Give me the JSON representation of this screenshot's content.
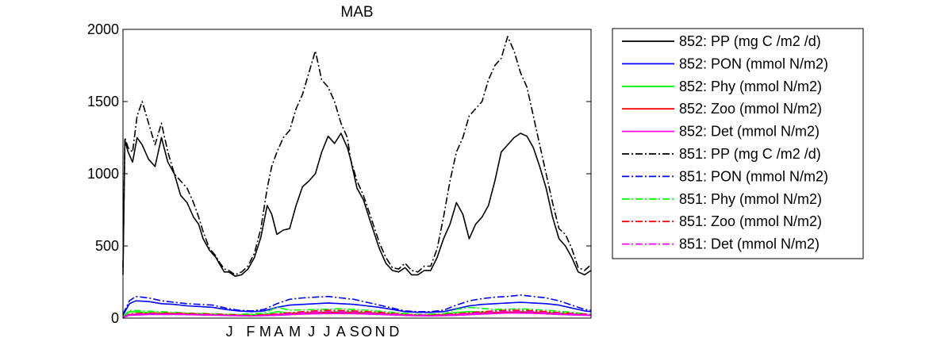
{
  "chart_data": {
    "type": "line",
    "title": "MAB",
    "xlabel": "",
    "ylabel": "",
    "ylim": [
      0,
      2000
    ],
    "xlim": [
      0,
      730
    ],
    "yticks": [
      0,
      500,
      1000,
      1500,
      2000
    ],
    "xticks": [
      {
        "label": "J",
        "day": 166
      },
      {
        "label": "F",
        "day": 199
      },
      {
        "label": "M",
        "day": 222
      },
      {
        "label": "A",
        "day": 243
      },
      {
        "label": "M",
        "day": 268
      },
      {
        "label": "J",
        "day": 294
      },
      {
        "label": "J",
        "day": 318
      },
      {
        "label": "A",
        "day": 340
      },
      {
        "label": "S",
        "day": 361
      },
      {
        "label": "O",
        "day": 380
      },
      {
        "label": "N",
        "day": 401
      },
      {
        "label": "D",
        "day": 423
      }
    ],
    "grid": false,
    "legend_position": "outside-right",
    "series": [
      {
        "name": "852: PP (mg C /m2 /d)",
        "color": "#000000",
        "style": "solid",
        "x": [
          0,
          3,
          8,
          15,
          22,
          30,
          40,
          50,
          60,
          70,
          80,
          90,
          100,
          110,
          118,
          125,
          135,
          145,
          150,
          158,
          165,
          175,
          185,
          195,
          205,
          215,
          225,
          232,
          240,
          250,
          260,
          270,
          280,
          290,
          300,
          310,
          320,
          330,
          340,
          350,
          355,
          365,
          375,
          385,
          400,
          410,
          420,
          430,
          440,
          450,
          460,
          470,
          480,
          490,
          500,
          510,
          520,
          530,
          540,
          550,
          560,
          570,
          580,
          590,
          600,
          610,
          620,
          630,
          640,
          650,
          660,
          670,
          680,
          690,
          700,
          710,
          720,
          730
        ],
        "y": [
          300,
          1230,
          1150,
          1080,
          1250,
          1200,
          1100,
          1050,
          1250,
          1080,
          1000,
          850,
          800,
          700,
          650,
          550,
          470,
          420,
          380,
          320,
          320,
          290,
          300,
          340,
          420,
          560,
          780,
          720,
          580,
          610,
          620,
          780,
          910,
          950,
          1000,
          1150,
          1260,
          1210,
          1280,
          1180,
          1100,
          900,
          820,
          680,
          480,
          380,
          330,
          320,
          350,
          300,
          300,
          330,
          330,
          420,
          550,
          650,
          800,
          720,
          550,
          650,
          700,
          780,
          950,
          1150,
          1200,
          1250,
          1280,
          1260,
          1180,
          1050,
          900,
          700,
          550,
          500,
          420,
          320,
          300,
          330
        ]
      },
      {
        "name": "852: PON (mmol N/m2)",
        "color": "#0000ff",
        "style": "solid",
        "x": [
          0,
          10,
          20,
          40,
          60,
          80,
          100,
          120,
          140,
          160,
          180,
          200,
          220,
          240,
          260,
          280,
          300,
          320,
          340,
          360,
          380,
          400,
          420,
          440,
          460,
          480,
          500,
          520,
          540,
          560,
          580,
          600,
          620,
          640,
          660,
          680,
          700,
          720,
          730
        ],
        "y": [
          20,
          100,
          120,
          115,
          100,
          95,
          85,
          80,
          75,
          60,
          50,
          45,
          50,
          75,
          90,
          95,
          100,
          105,
          100,
          95,
          85,
          75,
          60,
          45,
          40,
          40,
          45,
          65,
          85,
          95,
          100,
          105,
          110,
          105,
          100,
          90,
          70,
          50,
          45
        ]
      },
      {
        "name": "852: Phy (mmol N/m2)",
        "color": "#00ff00",
        "style": "solid",
        "x": [
          0,
          10,
          30,
          60,
          100,
          140,
          180,
          220,
          240,
          260,
          300,
          340,
          380,
          420,
          460,
          500,
          520,
          540,
          580,
          620,
          660,
          700,
          730
        ],
        "y": [
          10,
          45,
          40,
          35,
          30,
          25,
          20,
          25,
          45,
          35,
          40,
          45,
          40,
          30,
          20,
          25,
          40,
          45,
          40,
          45,
          40,
          30,
          20
        ]
      },
      {
        "name": "852: Zoo (mmol N/m2)",
        "color": "#ff0000",
        "style": "solid",
        "x": [
          0,
          10,
          40,
          80,
          120,
          160,
          200,
          240,
          280,
          320,
          360,
          400,
          440,
          480,
          520,
          560,
          600,
          640,
          680,
          730
        ],
        "y": [
          5,
          25,
          30,
          30,
          25,
          20,
          15,
          25,
          35,
          40,
          38,
          30,
          20,
          18,
          25,
          35,
          42,
          40,
          30,
          20
        ]
      },
      {
        "name": "852: Det (mmol N/m2)",
        "color": "#ff00ff",
        "style": "solid",
        "x": [
          0,
          10,
          40,
          80,
          120,
          160,
          200,
          240,
          280,
          320,
          360,
          400,
          440,
          480,
          520,
          560,
          600,
          640,
          680,
          730
        ],
        "y": [
          5,
          20,
          25,
          25,
          22,
          18,
          15,
          20,
          28,
          32,
          30,
          25,
          18,
          15,
          20,
          28,
          35,
          33,
          25,
          18
        ]
      },
      {
        "name": "851: PP (mg C /m2 /d)",
        "color": "#000000",
        "style": "dashdot",
        "x": [
          0,
          3,
          8,
          15,
          22,
          30,
          40,
          50,
          60,
          70,
          80,
          90,
          100,
          110,
          118,
          125,
          135,
          145,
          150,
          158,
          165,
          175,
          185,
          195,
          205,
          215,
          225,
          232,
          240,
          250,
          260,
          270,
          280,
          290,
          300,
          310,
          320,
          330,
          340,
          350,
          355,
          365,
          375,
          385,
          400,
          410,
          420,
          430,
          440,
          450,
          460,
          470,
          480,
          490,
          500,
          510,
          520,
          530,
          540,
          550,
          560,
          570,
          580,
          590,
          600,
          610,
          620,
          630,
          640,
          650,
          660,
          670,
          680,
          690,
          700,
          710,
          720,
          730
        ],
        "y": [
          350,
          1250,
          1180,
          1150,
          1400,
          1500,
          1350,
          1200,
          1350,
          1150,
          1000,
          950,
          900,
          800,
          700,
          600,
          480,
          430,
          390,
          340,
          330,
          300,
          320,
          360,
          450,
          620,
          900,
          1050,
          1150,
          1250,
          1300,
          1450,
          1550,
          1700,
          1850,
          1650,
          1600,
          1500,
          1350,
          1250,
          1100,
          950,
          850,
          720,
          520,
          420,
          350,
          340,
          380,
          330,
          320,
          360,
          360,
          480,
          700,
          950,
          1150,
          1250,
          1400,
          1450,
          1500,
          1650,
          1750,
          1800,
          1950,
          1850,
          1700,
          1600,
          1400,
          1200,
          1000,
          800,
          620,
          580,
          480,
          350,
          330,
          370
        ]
      },
      {
        "name": "851: PON (mmol N/m2)",
        "color": "#0000ff",
        "style": "dashdot",
        "x": [
          0,
          10,
          20,
          40,
          60,
          80,
          100,
          120,
          140,
          160,
          180,
          200,
          220,
          240,
          260,
          280,
          300,
          320,
          340,
          360,
          380,
          400,
          420,
          440,
          460,
          480,
          500,
          520,
          540,
          560,
          580,
          600,
          620,
          640,
          660,
          680,
          700,
          720,
          730
        ],
        "y": [
          25,
          120,
          150,
          140,
          120,
          110,
          100,
          95,
          90,
          70,
          55,
          50,
          60,
          100,
          130,
          140,
          145,
          150,
          140,
          130,
          110,
          90,
          70,
          50,
          45,
          45,
          55,
          90,
          120,
          135,
          145,
          150,
          160,
          150,
          140,
          120,
          90,
          60,
          55
        ]
      },
      {
        "name": "851: Phy (mmol N/m2)",
        "color": "#00ff00",
        "style": "dashdot",
        "x": [
          0,
          10,
          30,
          60,
          100,
          140,
          180,
          220,
          240,
          260,
          300,
          340,
          380,
          420,
          460,
          500,
          520,
          540,
          580,
          620,
          660,
          700,
          730
        ],
        "y": [
          10,
          55,
          50,
          45,
          35,
          30,
          25,
          35,
          75,
          55,
          60,
          65,
          55,
          40,
          25,
          30,
          60,
          75,
          60,
          65,
          55,
          40,
          25
        ]
      },
      {
        "name": "851: Zoo (mmol N/m2)",
        "color": "#ff0000",
        "style": "dashdot",
        "x": [
          0,
          10,
          40,
          80,
          120,
          160,
          200,
          240,
          280,
          320,
          360,
          400,
          440,
          480,
          520,
          560,
          600,
          640,
          680,
          730
        ],
        "y": [
          5,
          30,
          35,
          35,
          30,
          25,
          18,
          30,
          45,
          55,
          50,
          40,
          25,
          20,
          30,
          45,
          55,
          52,
          38,
          25
        ]
      },
      {
        "name": "851: Det (mmol N/m2)",
        "color": "#ff00ff",
        "style": "dashdot",
        "x": [
          0,
          10,
          40,
          80,
          120,
          160,
          200,
          240,
          280,
          320,
          360,
          400,
          440,
          480,
          520,
          560,
          600,
          640,
          680,
          730
        ],
        "y": [
          5,
          25,
          30,
          28,
          25,
          20,
          15,
          25,
          38,
          45,
          42,
          32,
          22,
          18,
          25,
          38,
          48,
          45,
          32,
          22
        ]
      }
    ]
  }
}
